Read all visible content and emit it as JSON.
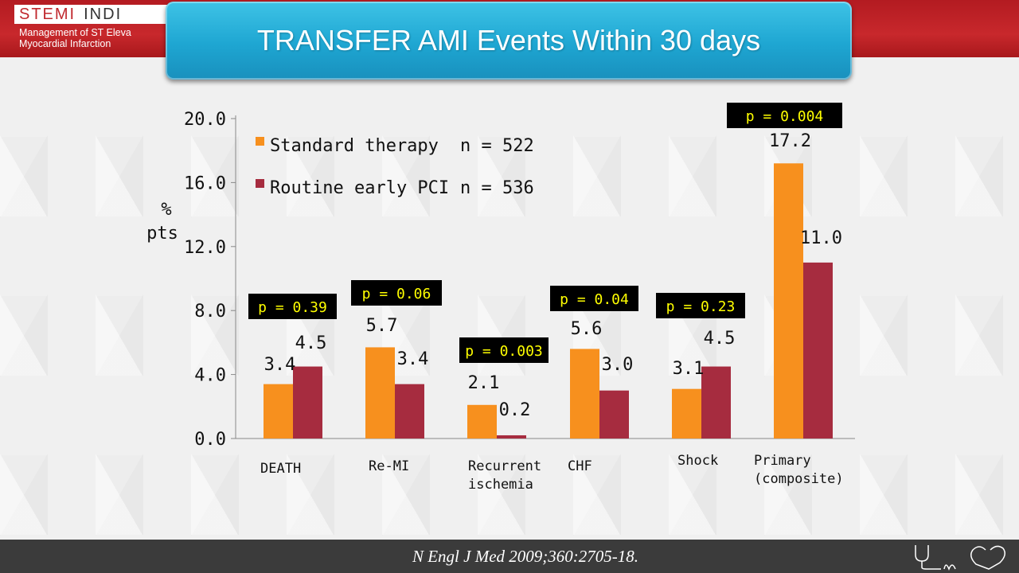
{
  "header": {
    "logo_main": "STEMI",
    "logo_secondary": "INDI",
    "logo_subtitle_line1": "Management of ST Eleva",
    "logo_subtitle_line2": "Myocardial Infarction"
  },
  "slide": {
    "title": "TRANSFER AMI Events Within 30 days",
    "citation": "N Engl J Med 2009;360:2705-18."
  },
  "colors": {
    "standard": "#f7901e",
    "early_pci": "#a62c3f",
    "pbox_bg": "#000000",
    "pbox_text": "#ffff00",
    "title_bar": "#1ea6d2",
    "header_band": "#c0272d"
  },
  "chart_data": {
    "type": "bar",
    "ylabel": "% pts",
    "ylim": [
      0,
      20
    ],
    "yticks": [
      "0.0",
      "4.0",
      "8.0",
      "12.0",
      "16.0",
      "20.0"
    ],
    "categories": [
      "DEATH",
      "Re-MI",
      "Recurrent ischemia",
      "CHF",
      "Shock",
      "Primary (composite)"
    ],
    "series": [
      {
        "name": "Standard therapy",
        "n_label": "n = 522",
        "values": [
          3.4,
          5.7,
          2.1,
          5.6,
          3.1,
          17.2
        ],
        "labels": [
          "3.4",
          "5.7",
          "2.1",
          "5.6",
          "3.1",
          "17.2"
        ]
      },
      {
        "name": "Routine early PCI",
        "n_label": "n = 536",
        "values": [
          4.5,
          3.4,
          0.2,
          3.0,
          4.5,
          11.0
        ],
        "labels": [
          "4.5",
          "3.4",
          "0.2",
          "3.0",
          "4.5",
          "11.0"
        ]
      }
    ],
    "p_values": [
      "p = 0.39",
      "p = 0.06",
      "p = 0.003",
      "p = 0.04",
      "p = 0.23",
      "p = 0.004"
    ],
    "legend_position": "top-left",
    "grid": false
  }
}
